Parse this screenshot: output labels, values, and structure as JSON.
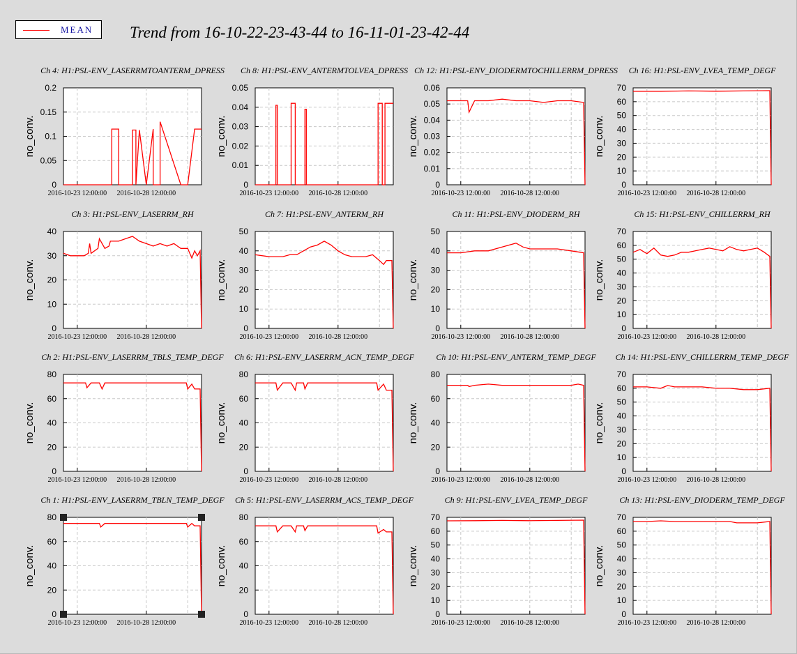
{
  "legend": {
    "label": "MEAN",
    "color": "#ff0000"
  },
  "title": "Trend from 16-10-22-23-43-44 to 16-11-01-23-42-44",
  "selected_panel": "Ch 1",
  "chart_data": [
    {
      "type": "line",
      "title": "Ch 4: H1:PSL-ENV_LASERRMTOANTERM_DPRESS",
      "ylabel": "no_conv.",
      "ylim": [
        0,
        0.2
      ],
      "yticks": [
        "0",
        "0.05",
        "0.1",
        "0.15",
        "0.2"
      ],
      "xticks": [
        "2016-10-23 12:00:00",
        "2016-10-28 12:00:00"
      ],
      "x": [
        0,
        3,
        3.5,
        3.5,
        4,
        4,
        5,
        5,
        5.25,
        5.25,
        5.5,
        5.5,
        6,
        6,
        6.5,
        6.5,
        7,
        7,
        8.5,
        8.5,
        9,
        9.5,
        9.5,
        10
      ],
      "y": [
        0,
        0,
        0,
        0.115,
        0.115,
        0,
        0,
        0.113,
        0.113,
        0,
        0.113,
        0.113,
        0,
        0,
        0.115,
        0,
        0,
        0.13,
        0,
        0,
        0,
        0.115,
        0.115,
        0.115
      ]
    },
    {
      "type": "line",
      "title": "Ch 8: H1:PSL-ENV_ANTERMTOLVEA_DPRESS",
      "ylabel": "no_conv.",
      "ylim": [
        0,
        0.05
      ],
      "yticks": [
        "0",
        "0.01",
        "0.02",
        "0.03",
        "0.04",
        "0.05"
      ],
      "xticks": [
        "2016-10-23 12:00:00",
        "2016-10-28 12:00:00"
      ],
      "x": [
        0,
        1.5,
        1.5,
        1.6,
        1.6,
        2.6,
        2.6,
        2.9,
        2.9,
        3.6,
        3.6,
        3.7,
        3.7,
        8.9,
        8.9,
        9.2,
        9.2,
        9.4,
        9.4,
        10
      ],
      "y": [
        0,
        0,
        0.041,
        0.041,
        0,
        0,
        0.042,
        0.042,
        0,
        0,
        0.039,
        0.039,
        0,
        0,
        0.042,
        0.042,
        0,
        0,
        0.042,
        0.042
      ]
    },
    {
      "type": "line",
      "title": "Ch 12: H1:PSL-ENV_DIODERMTOCHILLERRM_DPRESS",
      "ylabel": "no_conv.",
      "ylim": [
        0,
        0.06
      ],
      "yticks": [
        "0",
        "0.01",
        "0.02",
        "0.03",
        "0.04",
        "0.05",
        "0.06"
      ],
      "xticks": [
        "2016-10-23 12:00:00",
        "2016-10-28 12:00:00"
      ],
      "x": [
        0,
        1,
        1.5,
        1.6,
        2,
        3,
        4,
        5,
        6,
        7,
        8,
        9,
        9.9,
        10
      ],
      "y": [
        0.052,
        0.052,
        0.052,
        0.045,
        0.052,
        0.052,
        0.053,
        0.052,
        0.052,
        0.051,
        0.052,
        0.052,
        0.051,
        0
      ]
    },
    {
      "type": "line",
      "title": "Ch 16: H1:PSL-ENV_LVEA_TEMP_DEGF",
      "ylabel": "no_conv.",
      "ylim": [
        0,
        70
      ],
      "yticks": [
        "0",
        "10",
        "20",
        "30",
        "40",
        "50",
        "60",
        "70"
      ],
      "xticks": [
        "2016-10-23 12:00:00",
        "2016-10-28 12:00:00"
      ],
      "x": [
        0,
        2,
        4,
        6,
        8,
        9.9,
        10
      ],
      "y": [
        67.5,
        67.5,
        67.8,
        67.6,
        67.8,
        68,
        0
      ]
    },
    {
      "type": "line",
      "title": "Ch 3: H1:PSL-ENV_LASERRM_RH",
      "ylabel": "no_conv.",
      "ylim": [
        0,
        40
      ],
      "yticks": [
        "0",
        "10",
        "20",
        "30",
        "40"
      ],
      "xticks": [
        "2016-10-23 12:00:00",
        "2016-10-28 12:00:00"
      ],
      "x": [
        0,
        0.5,
        1,
        1.5,
        1.8,
        1.9,
        2,
        2.5,
        2.6,
        3,
        3.3,
        3.4,
        4,
        4.5,
        5,
        5.5,
        6,
        6.5,
        7,
        7.5,
        8,
        8.5,
        9,
        9.3,
        9.5,
        9.7,
        9.9,
        10
      ],
      "y": [
        31,
        30,
        30,
        30,
        31,
        35,
        31,
        33,
        37,
        33,
        34,
        36,
        36,
        37,
        38,
        36,
        35,
        34,
        35,
        34,
        35,
        33,
        33,
        29,
        32,
        30,
        32,
        0
      ]
    },
    {
      "type": "line",
      "title": "Ch 7: H1:PSL-ENV_ANTERM_RH",
      "ylabel": "no_conv.",
      "ylim": [
        0,
        50
      ],
      "yticks": [
        "0",
        "10",
        "20",
        "30",
        "40",
        "50"
      ],
      "xticks": [
        "2016-10-23 12:00:00",
        "2016-10-28 12:00:00"
      ],
      "x": [
        0,
        1,
        2,
        2.5,
        3,
        3.5,
        4,
        4.5,
        5,
        5.5,
        6,
        6.5,
        7,
        7.5,
        8,
        8.5,
        9,
        9.3,
        9.5,
        9.9,
        10
      ],
      "y": [
        38,
        37,
        37,
        38,
        38,
        40,
        42,
        43,
        45,
        43,
        40,
        38,
        37,
        37,
        37,
        38,
        35,
        33,
        35,
        35,
        0
      ]
    },
    {
      "type": "line",
      "title": "Ch 11: H1:PSL-ENV_DIODERM_RH",
      "ylabel": "no_conv.",
      "ylim": [
        0,
        50
      ],
      "yticks": [
        "0",
        "10",
        "20",
        "30",
        "40",
        "50"
      ],
      "xticks": [
        "2016-10-23 12:00:00",
        "2016-10-28 12:00:00"
      ],
      "x": [
        0,
        1,
        2,
        3,
        4,
        4.5,
        5,
        5.5,
        6,
        7,
        8,
        9,
        9.9,
        10
      ],
      "y": [
        39,
        39,
        40,
        40,
        42,
        43,
        44,
        42,
        41,
        41,
        41,
        40,
        39,
        0
      ]
    },
    {
      "type": "line",
      "title": "Ch 15: H1:PSL-ENV_CHILLERRM_RH",
      "ylabel": "no_conv.",
      "ylim": [
        0,
        70
      ],
      "yticks": [
        "0",
        "10",
        "20",
        "30",
        "40",
        "50",
        "60",
        "70"
      ],
      "xticks": [
        "2016-10-23 12:00:00",
        "2016-10-28 12:00:00"
      ],
      "x": [
        0,
        0.5,
        1,
        1.5,
        2,
        2.5,
        3,
        3.5,
        4,
        4.5,
        5,
        5.5,
        6,
        6.5,
        7,
        7.5,
        8,
        8.5,
        9,
        9.5,
        9.9,
        10
      ],
      "y": [
        55,
        57,
        54,
        58,
        53,
        52,
        53,
        55,
        55,
        56,
        57,
        58,
        57,
        56,
        59,
        57,
        56,
        57,
        58,
        55,
        52,
        0
      ]
    },
    {
      "type": "line",
      "title": "Ch 2: H1:PSL-ENV_LASERRM_TBLS_TEMP_DEGF",
      "ylabel": "no_conv.",
      "ylim": [
        0,
        80
      ],
      "yticks": [
        "0",
        "20",
        "40",
        "60",
        "80"
      ],
      "xticks": [
        "2016-10-23 12:00:00",
        "2016-10-28 12:00:00"
      ],
      "x": [
        0,
        1,
        1.6,
        1.7,
        2,
        2.6,
        2.8,
        3,
        4,
        5,
        6,
        7,
        8,
        8.9,
        9,
        9.3,
        9.5,
        9.9,
        10
      ],
      "y": [
        73,
        73,
        73,
        69,
        73,
        73,
        68,
        73,
        73,
        73,
        73,
        73,
        73,
        73,
        68,
        72,
        68,
        68,
        0
      ]
    },
    {
      "type": "line",
      "title": "Ch 6: H1:PSL-ENV_LASERRM_ACN_TEMP_DEGF",
      "ylabel": "no_conv.",
      "ylim": [
        0,
        80
      ],
      "yticks": [
        "0",
        "20",
        "40",
        "60",
        "80"
      ],
      "xticks": [
        "2016-10-23 12:00:00",
        "2016-10-28 12:00:00"
      ],
      "x": [
        0,
        1,
        1.5,
        1.6,
        2,
        2.5,
        2.6,
        2.9,
        3,
        3.5,
        3.6,
        3.8,
        4,
        5,
        6,
        7,
        8,
        8.8,
        8.9,
        9.3,
        9.5,
        9.9,
        10
      ],
      "y": [
        73,
        73,
        73,
        67,
        73,
        73,
        73,
        67,
        73,
        73,
        68,
        73,
        73,
        73,
        73,
        73,
        73,
        73,
        67,
        72,
        67,
        67,
        0
      ]
    },
    {
      "type": "line",
      "title": "Ch 10: H1:PSL-ENV_ANTERM_TEMP_DEGF",
      "ylabel": "no_conv.",
      "ylim": [
        0,
        80
      ],
      "yticks": [
        "0",
        "20",
        "40",
        "60",
        "80"
      ],
      "xticks": [
        "2016-10-23 12:00:00",
        "2016-10-28 12:00:00"
      ],
      "x": [
        0,
        1,
        1.5,
        1.6,
        2,
        3,
        4,
        5,
        6,
        7,
        8,
        9,
        9.5,
        9.9,
        10
      ],
      "y": [
        71,
        71,
        71,
        70,
        71,
        72,
        71,
        71,
        71,
        71,
        71,
        71,
        72,
        71,
        0
      ]
    },
    {
      "type": "line",
      "title": "Ch 14: H1:PSL-ENV_CHILLERRM_TEMP_DEGF",
      "ylabel": "no_conv.",
      "ylim": [
        0,
        70
      ],
      "yticks": [
        "0",
        "10",
        "20",
        "30",
        "40",
        "50",
        "60",
        "70"
      ],
      "xticks": [
        "2016-10-23 12:00:00",
        "2016-10-28 12:00:00"
      ],
      "x": [
        0,
        1,
        2,
        2.5,
        3,
        4,
        5,
        6,
        7,
        8,
        9,
        9.9,
        10
      ],
      "y": [
        61,
        61,
        60,
        62,
        61,
        61,
        61,
        60,
        60,
        59,
        59,
        60,
        0
      ]
    },
    {
      "type": "line",
      "title": "Ch 1: H1:PSL-ENV_LASERRM_TBLN_TEMP_DEGF",
      "ylabel": "no_conv.",
      "ylim": [
        0,
        80
      ],
      "yticks": [
        "0",
        "20",
        "40",
        "60",
        "80"
      ],
      "xticks": [
        "2016-10-23 12:00:00",
        "2016-10-28 12:00:00"
      ],
      "x": [
        0,
        1,
        2,
        2.6,
        2.7,
        3,
        4,
        5,
        6,
        7,
        8,
        8.9,
        9,
        9.3,
        9.5,
        9.9,
        10
      ],
      "y": [
        75,
        75,
        75,
        75,
        72,
        75,
        75,
        75,
        75,
        75,
        75,
        75,
        72,
        75,
        73,
        73,
        0
      ]
    },
    {
      "type": "line",
      "title": "Ch 5: H1:PSL-ENV_LASERRM_ACS_TEMP_DEGF",
      "ylabel": "no_conv.",
      "ylim": [
        0,
        80
      ],
      "yticks": [
        "0",
        "20",
        "40",
        "60",
        "80"
      ],
      "xticks": [
        "2016-10-23 12:00:00",
        "2016-10-28 12:00:00"
      ],
      "x": [
        0,
        1,
        1.5,
        1.6,
        2,
        2.5,
        2.6,
        2.9,
        3,
        3.5,
        3.6,
        3.8,
        4,
        5,
        6,
        7,
        8,
        8.8,
        8.9,
        9.3,
        9.5,
        9.9,
        10
      ],
      "y": [
        73,
        73,
        73,
        68,
        73,
        73,
        73,
        68,
        73,
        73,
        69,
        73,
        73,
        73,
        73,
        73,
        73,
        73,
        67,
        70,
        68,
        68,
        0
      ]
    },
    {
      "type": "line",
      "title": "Ch 9: H1:PSL-ENV_LVEA_TEMP_DEGF",
      "ylabel": "no_conv.",
      "ylim": [
        0,
        70
      ],
      "yticks": [
        "0",
        "10",
        "20",
        "30",
        "40",
        "50",
        "60",
        "70"
      ],
      "xticks": [
        "2016-10-23 12:00:00",
        "2016-10-28 12:00:00"
      ],
      "x": [
        0,
        2,
        4,
        6,
        8,
        9.9,
        10
      ],
      "y": [
        67.5,
        67.6,
        67.8,
        67.6,
        67.8,
        68,
        0
      ]
    },
    {
      "type": "line",
      "title": "Ch 13: H1:PSL-ENV_DIODERM_TEMP_DEGF",
      "ylabel": "no_conv.",
      "ylim": [
        0,
        70
      ],
      "yticks": [
        "0",
        "10",
        "20",
        "30",
        "40",
        "50",
        "60",
        "70"
      ],
      "xticks": [
        "2016-10-23 12:00:00",
        "2016-10-28 12:00:00"
      ],
      "x": [
        0,
        1,
        2,
        3,
        4,
        5,
        6,
        7,
        7.5,
        8,
        9,
        9.9,
        10
      ],
      "y": [
        67,
        67,
        67.5,
        67,
        67,
        67,
        67,
        67,
        66,
        66,
        66,
        67,
        0
      ]
    }
  ]
}
